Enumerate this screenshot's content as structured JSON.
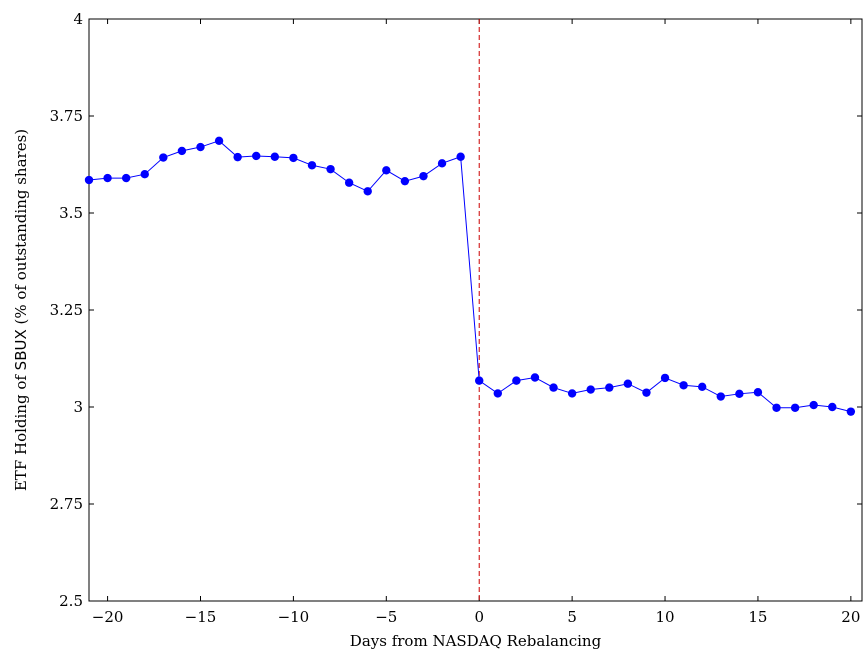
{
  "chart_data": {
    "type": "line",
    "title": "",
    "xlabel": "Days from NASDAQ Rebalancing",
    "ylabel_prefix": "ETF Holding of ",
    "ylabel_ticker": "SBUX",
    "ylabel_suffix": " (% of outstanding shares)",
    "xlim": [
      -21,
      20.6
    ],
    "ylim": [
      2.5,
      4.0
    ],
    "xticks": [
      -20,
      -15,
      -10,
      -5,
      0,
      5,
      10,
      15,
      20
    ],
    "xtick_labels": [
      "−20",
      "−15",
      "−10",
      "−5",
      "0",
      "5",
      "10",
      "15",
      "20"
    ],
    "yticks": [
      2.5,
      2.75,
      3.0,
      3.25,
      3.5,
      3.75,
      4.0
    ],
    "ytick_labels": [
      "2.5",
      "2.75",
      "3",
      "3.25",
      "3.5",
      "3.75",
      "4"
    ],
    "grid": false,
    "series": [
      {
        "color": "#0000ff",
        "marker": "circle",
        "x": [
          -21,
          -20,
          -19,
          -18,
          -17,
          -16,
          -15,
          -14,
          -13,
          -12,
          -11,
          -10,
          -9,
          -8,
          -7,
          -6,
          -5,
          -4,
          -3,
          -2,
          -1,
          0,
          1,
          2,
          3,
          4,
          5,
          6,
          7,
          8,
          9,
          10,
          11,
          12,
          13,
          14,
          15,
          16,
          17,
          18,
          19,
          20
        ],
        "y": [
          3.585,
          3.59,
          3.59,
          3.6,
          3.643,
          3.66,
          3.67,
          3.686,
          3.644,
          3.647,
          3.645,
          3.642,
          3.623,
          3.613,
          3.578,
          3.556,
          3.61,
          3.582,
          3.595,
          3.628,
          3.645,
          3.068,
          3.035,
          3.068,
          3.076,
          3.05,
          3.035,
          3.045,
          3.05,
          3.06,
          3.037,
          3.075,
          3.056,
          3.052,
          3.027,
          3.034,
          3.038,
          2.998,
          2.998,
          3.005,
          3.0,
          2.988
        ]
      }
    ],
    "vline": {
      "x": 0,
      "color": "#cc0000",
      "style": "dashed"
    }
  }
}
